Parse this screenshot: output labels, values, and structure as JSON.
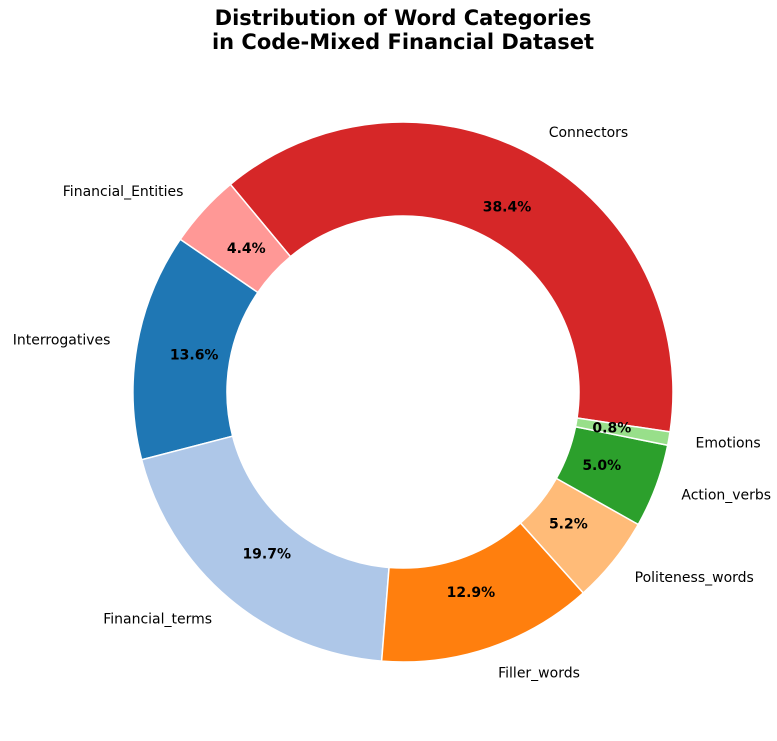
{
  "chart_data": {
    "type": "pie",
    "style": "donut",
    "title_lines": [
      "Distribution of Word Categories",
      "in Code-Mixed Financial Dataset"
    ],
    "start": "Connectors begins at right, slices run counter-clockwise",
    "slices": [
      {
        "label": "Connectors",
        "value": 38.4,
        "pct_label": "38.4%",
        "color": "#d62728"
      },
      {
        "label": "Financial_Entities",
        "value": 4.4,
        "pct_label": "4.4%",
        "color": "#ff9896"
      },
      {
        "label": "Interrogatives",
        "value": 13.6,
        "pct_label": "13.6%",
        "color": "#1f77b4"
      },
      {
        "label": "Financial_terms",
        "value": 19.7,
        "pct_label": "19.7%",
        "color": "#aec7e8"
      },
      {
        "label": "Filler_words",
        "value": 12.9,
        "pct_label": "12.9%",
        "color": "#ff7f0e"
      },
      {
        "label": "Politeness_words",
        "value": 5.2,
        "pct_label": "5.2%",
        "color": "#ffbb78"
      },
      {
        "label": "Action_verbs",
        "value": 5.0,
        "pct_label": "5.0%",
        "color": "#2ca02c"
      },
      {
        "label": "Emotions",
        "value": 0.8,
        "pct_label": "0.8%",
        "color": "#98df8a"
      }
    ]
  }
}
